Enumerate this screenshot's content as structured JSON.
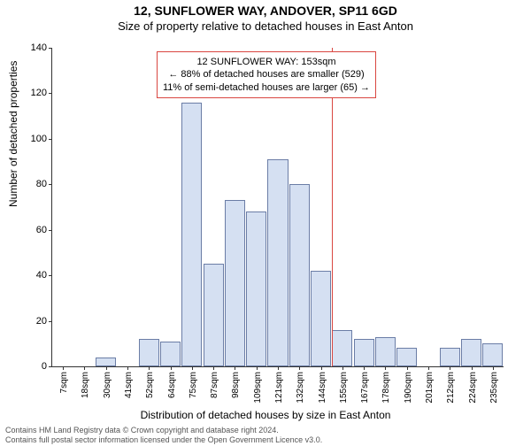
{
  "title_main": "12, SUNFLOWER WAY, ANDOVER, SP11 6GD",
  "title_sub": "Size of property relative to detached houses in East Anton",
  "ylabel": "Number of detached properties",
  "xlabel": "Distribution of detached houses by size in East Anton",
  "footer_line1": "Contains HM Land Registry data © Crown copyright and database right 2024.",
  "footer_line2": "Contains full postal sector information licensed under the Open Government Licence v3.0.",
  "chart": {
    "type": "bar",
    "ylim": [
      0,
      140
    ],
    "ytick_step": 20,
    "yticks": [
      0,
      20,
      40,
      60,
      80,
      100,
      120,
      140
    ],
    "categories": [
      "7sqm",
      "18sqm",
      "30sqm",
      "41sqm",
      "52sqm",
      "64sqm",
      "75sqm",
      "87sqm",
      "98sqm",
      "109sqm",
      "121sqm",
      "132sqm",
      "144sqm",
      "155sqm",
      "167sqm",
      "178sqm",
      "190sqm",
      "201sqm",
      "212sqm",
      "224sqm",
      "235sqm"
    ],
    "values": [
      0,
      0,
      4,
      0,
      12,
      11,
      116,
      45,
      73,
      68,
      91,
      80,
      42,
      16,
      12,
      13,
      8,
      0,
      8,
      12,
      10
    ],
    "bar_fill": "#d5e0f2",
    "bar_border": "#6b7da6",
    "background_color": "#ffffff",
    "axis_color": "#333333",
    "tick_font_size": 10,
    "marker": {
      "x_category": "155sqm",
      "color": "#d94640",
      "callout_border": "#d94640",
      "line1": "12 SUNFLOWER WAY: 153sqm",
      "line2": "← 88% of detached houses are smaller (529)",
      "line3": "11% of semi-detached houses are larger (65) →"
    }
  }
}
